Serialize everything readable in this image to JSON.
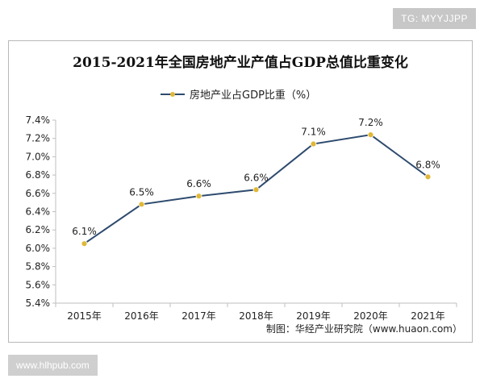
{
  "watermarks": {
    "top_right": "TG: MYYJJPP",
    "bottom_left": "www.hlhpub.com"
  },
  "credit": "制图：华经产业研究院（www.huaon.com）",
  "colors": {
    "line": "#2e4b6e",
    "marker": "#e0b838",
    "axis": "#bfbfbf",
    "text": "#222222"
  },
  "chart_data": {
    "type": "line",
    "title": "2015-2021年全国房地产业产值占GDP总值比重变化",
    "xlabel": "",
    "ylabel": "",
    "categories": [
      "2015年",
      "2016年",
      "2017年",
      "2018年",
      "2019年",
      "2020年",
      "2021年"
    ],
    "series": [
      {
        "name": "房地产业占GDP比重（%）",
        "values": [
          6.05,
          6.48,
          6.57,
          6.64,
          7.14,
          7.24,
          6.78
        ],
        "labels": [
          "6.1%",
          "6.5%",
          "6.6%",
          "6.6%",
          "7.1%",
          "7.2%",
          "6.8%"
        ]
      }
    ],
    "ylim": [
      5.4,
      7.4
    ],
    "yticks": [
      5.4,
      5.6,
      5.8,
      6.0,
      6.2,
      6.4,
      6.6,
      6.8,
      7.0,
      7.2,
      7.4
    ],
    "ytick_labels": [
      "5.4%",
      "5.6%",
      "5.8%",
      "6.0%",
      "6.2%",
      "6.4%",
      "6.6%",
      "6.8%",
      "7.0%",
      "7.2%",
      "7.4%"
    ],
    "grid": false,
    "legend_position": "top"
  }
}
